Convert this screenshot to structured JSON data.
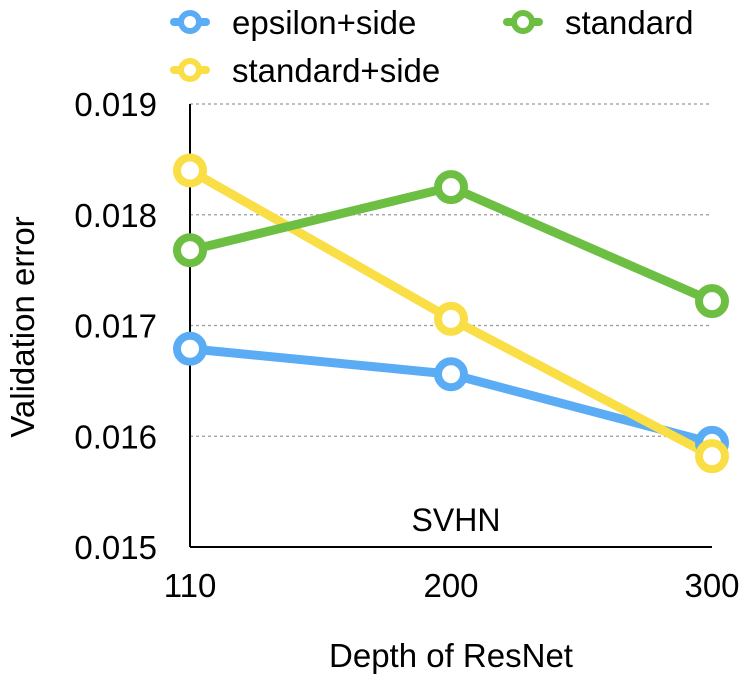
{
  "chart_data": {
    "type": "line",
    "title": "",
    "annotation": "SVHN",
    "xlabel": "Depth of ResNet",
    "ylabel": "Validation error",
    "categories": [
      "110",
      "200",
      "300"
    ],
    "ylim": [
      0.015,
      0.019
    ],
    "yticks": [
      "0.015",
      "0.016",
      "0.017",
      "0.018",
      "0.019"
    ],
    "grid": true,
    "legend_position": "top",
    "series": [
      {
        "name": "epsilon+side",
        "color": "#5aacf5",
        "values": [
          0.01679,
          0.01656,
          0.01594
        ]
      },
      {
        "name": "standard+side",
        "color": "#fade46",
        "values": [
          0.0184,
          0.01706,
          0.01582
        ]
      },
      {
        "name": "standard",
        "color": "#6dbf43",
        "values": [
          0.01768,
          0.01825,
          0.01722
        ]
      }
    ]
  }
}
